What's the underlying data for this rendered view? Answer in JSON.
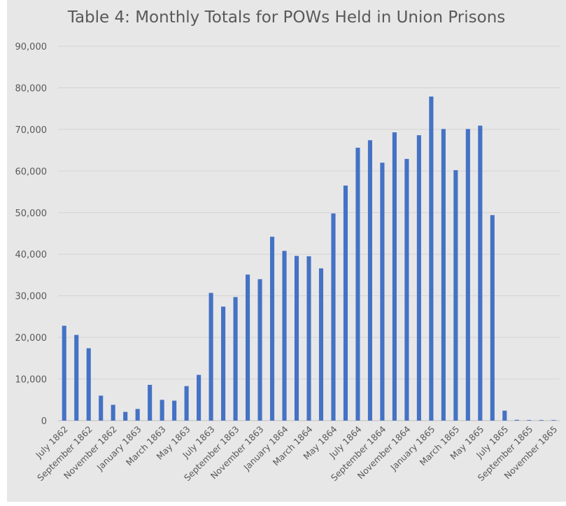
{
  "chart_data": {
    "type": "bar",
    "title": "Table 4: Monthly Totals for POWs Held in Union Prisons",
    "xlabel": "",
    "ylabel": "",
    "ylim": [
      0,
      90000
    ],
    "yticks": [
      "0",
      "10,000",
      "20,000",
      "30,000",
      "40,000",
      "50,000",
      "60,000",
      "70,000",
      "80,000",
      "90,000"
    ],
    "grid": true,
    "color": "#4472c4",
    "categories": [
      "July 1862",
      "August 1862",
      "September 1862",
      "October 1862",
      "November 1862",
      "December 1862",
      "January 1863",
      "February 1863",
      "March 1863",
      "April 1863",
      "May 1863",
      "June 1863",
      "July 1863",
      "August 1863",
      "September 1863",
      "October 1863",
      "November 1863",
      "December 1863",
      "January 1864",
      "February 1864",
      "March 1864",
      "April 1864",
      "May 1864",
      "June 1864",
      "July 1864",
      "August 1864",
      "September 1864",
      "October 1864",
      "November 1864",
      "December 1864",
      "January 1865",
      "February 1865",
      "March 1865",
      "April 1865",
      "May 1865",
      "June 1865",
      "July 1865",
      "August 1865",
      "September 1865",
      "October 1865",
      "November 1865"
    ],
    "tick_labels": [
      "July 1862",
      "September 1862",
      "November 1862",
      "January 1863",
      "March 1863",
      "May 1863",
      "July 1863",
      "September 1863",
      "November 1863",
      "January 1864",
      "March 1864",
      "May 1864",
      "July 1864",
      "September 1864",
      "November 1864",
      "January 1865",
      "March 1865",
      "May 1865",
      "July 1865",
      "September 1865",
      "November 1865"
    ],
    "values": [
      22800,
      20600,
      17400,
      6000,
      3800,
      2100,
      2800,
      8600,
      5000,
      4800,
      8300,
      11000,
      30700,
      27400,
      29700,
      35100,
      34000,
      44200,
      40800,
      39600,
      39500,
      36600,
      49800,
      56500,
      65600,
      67400,
      62000,
      69300,
      62900,
      68600,
      77900,
      70100,
      60200,
      70100,
      70900,
      49400,
      2400,
      200,
      150,
      150,
      150
    ]
  }
}
